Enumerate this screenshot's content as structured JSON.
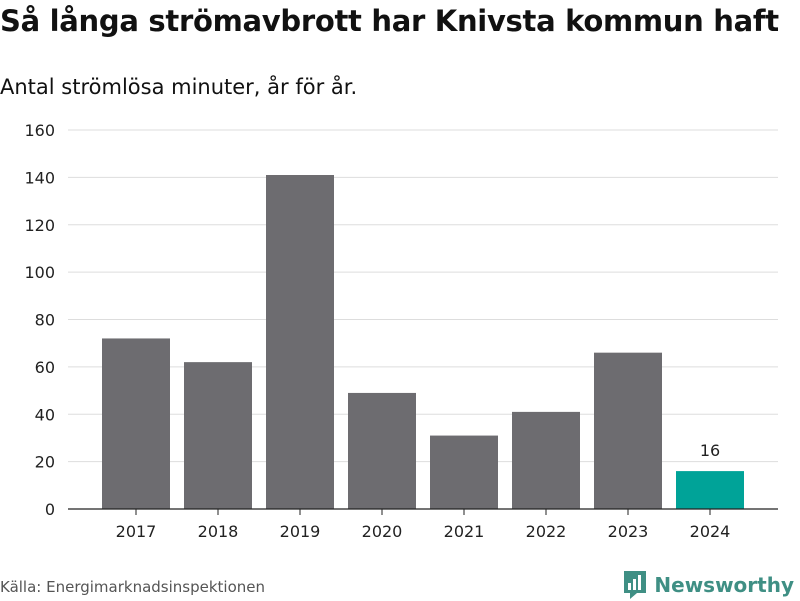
{
  "title": "Så långa strömavbrott har Knivsta kommun haft",
  "subtitle": "Antal strömlösa minuter, år för år.",
  "source": "Källa: Energimarknadsinspektionen",
  "brand": {
    "name": "Newsworthy",
    "icon": "newsworthy-logo-icon"
  },
  "colors": {
    "bar": "#6d6c70",
    "highlight": "#00a398",
    "grid": "#dddddd",
    "axis": "#222222",
    "brand": "#3f8f84"
  },
  "chart_data": {
    "type": "bar",
    "title": "Så långa strömavbrott har Knivsta kommun haft",
    "subtitle": "Antal strömlösa minuter, år för år.",
    "xlabel": "",
    "ylabel": "",
    "categories": [
      "2017",
      "2018",
      "2019",
      "2020",
      "2021",
      "2022",
      "2023",
      "2024"
    ],
    "values": [
      72,
      62,
      141,
      49,
      31,
      41,
      66,
      16
    ],
    "highlight_index": 7,
    "data_labels": [
      {
        "index": 7,
        "text": "16"
      }
    ],
    "ylim": [
      0,
      160
    ],
    "yticks": [
      0,
      20,
      40,
      60,
      80,
      100,
      120,
      140,
      160
    ],
    "grid": true
  }
}
